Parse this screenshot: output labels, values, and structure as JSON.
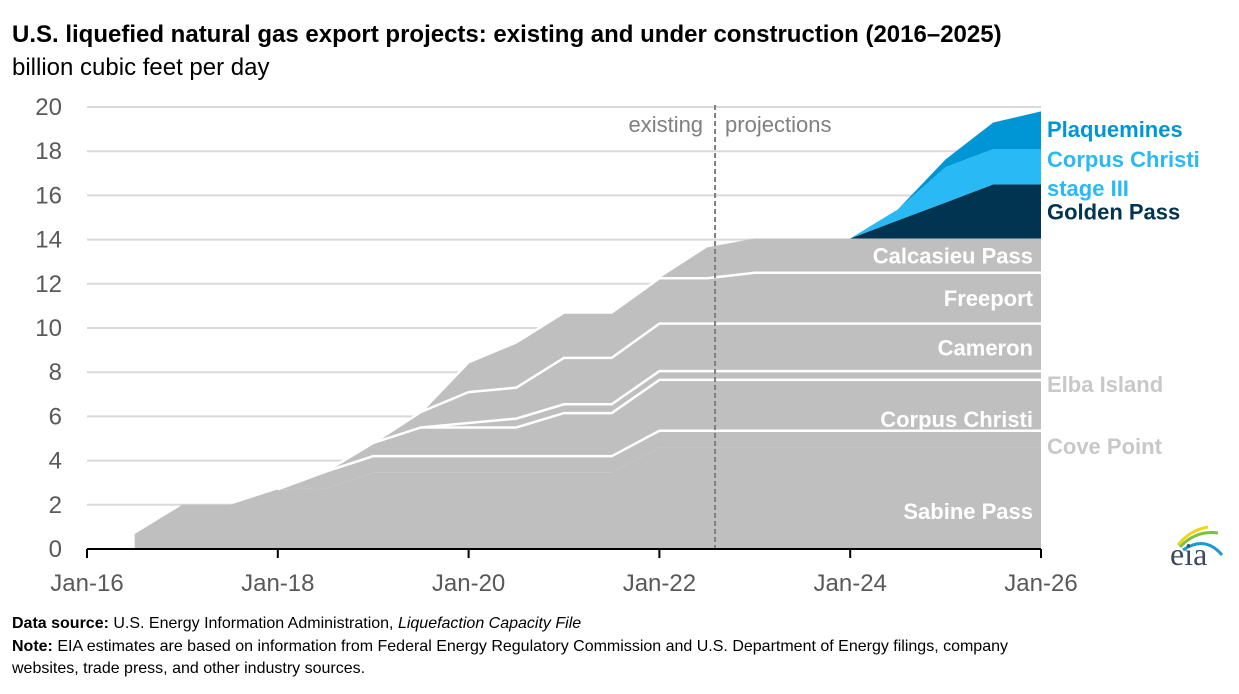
{
  "chart_data": {
    "type": "area",
    "stacked": true,
    "title": "U.S. liquefied natural gas export projects: existing and under construction (2016–2025)",
    "subtitle": "billion cubic feet per day",
    "xlabel": "",
    "ylabel": "",
    "ylim": [
      0,
      20
    ],
    "yticks": [
      "0",
      "2",
      "4",
      "6",
      "8",
      "10",
      "12",
      "14",
      "16",
      "18",
      "20"
    ],
    "xlim": [
      "2016-01",
      "2026-01"
    ],
    "xticks": [
      "Jan-16",
      "Jan-18",
      "Jan-20",
      "Jan-22",
      "Jan-24",
      "Jan-26"
    ],
    "grid": true,
    "legend": "inline-right",
    "divider": {
      "x": "2022-08",
      "left_label": "existing",
      "right_label": "projections"
    },
    "x": [
      "2016-07",
      "2017-01",
      "2017-07",
      "2018-01",
      "2018-07",
      "2019-01",
      "2019-07",
      "2020-01",
      "2020-07",
      "2021-01",
      "2021-07",
      "2022-01",
      "2022-07",
      "2023-01",
      "2024-01",
      "2024-07",
      "2025-01",
      "2025-07",
      "2026-01"
    ],
    "series": [
      {
        "name": "Sabine Pass",
        "color": "#bfbfbf",
        "label_color": "#ffffff",
        "values": [
          0.68,
          2.0,
          2.0,
          2.7,
          2.75,
          3.45,
          3.45,
          3.45,
          3.45,
          3.45,
          3.45,
          4.6,
          4.6,
          4.6,
          4.6,
          4.6,
          4.6,
          4.6,
          4.6
        ]
      },
      {
        "name": "Cove Point",
        "color": "#bfbfbf",
        "label_color": "#c8c8c8",
        "values": [
          0,
          0,
          0,
          0,
          0.75,
          0.75,
          0.75,
          0.75,
          0.75,
          0.75,
          0.75,
          0.75,
          0.75,
          0.75,
          0.75,
          0.75,
          0.75,
          0.75,
          0.75
        ]
      },
      {
        "name": "Corpus Christi",
        "color": "#bfbfbf",
        "label_color": "#ffffff",
        "values": [
          0,
          0,
          0,
          0,
          0,
          0.6,
          1.3,
          1.3,
          1.3,
          1.95,
          1.95,
          2.3,
          2.3,
          2.3,
          2.3,
          2.3,
          2.3,
          2.3,
          2.3
        ]
      },
      {
        "name": "Elba Island",
        "color": "#bfbfbf",
        "label_color": "#c8c8c8",
        "values": [
          0,
          0,
          0,
          0,
          0,
          0,
          0,
          0.2,
          0.4,
          0.4,
          0.4,
          0.4,
          0.4,
          0.4,
          0.4,
          0.4,
          0.4,
          0.4,
          0.4
        ]
      },
      {
        "name": "Cameron",
        "color": "#bfbfbf",
        "label_color": "#ffffff",
        "values": [
          0,
          0,
          0,
          0,
          0,
          0,
          0.7,
          1.4,
          1.4,
          2.1,
          2.1,
          2.15,
          2.15,
          2.15,
          2.15,
          2.15,
          2.15,
          2.15,
          2.15
        ]
      },
      {
        "name": "Freeport",
        "color": "#bfbfbf",
        "label_color": "#ffffff",
        "values": [
          0,
          0,
          0,
          0,
          0,
          0,
          0,
          1.35,
          2.05,
          2.05,
          2.05,
          2.05,
          2.05,
          2.3,
          2.3,
          2.3,
          2.3,
          2.3,
          2.3
        ]
      },
      {
        "name": "Calcasieu Pass",
        "color": "#bfbfbf",
        "label_color": "#ffffff",
        "values": [
          0,
          0,
          0,
          0,
          0,
          0,
          0,
          0,
          0,
          0,
          0,
          0,
          1.4,
          1.55,
          1.55,
          1.55,
          1.55,
          1.55,
          1.55
        ]
      },
      {
        "name": "Golden Pass",
        "color": "#003450",
        "label_color": "#003450",
        "values": [
          0,
          0,
          0,
          0,
          0,
          0,
          0,
          0,
          0,
          0,
          0,
          0,
          0,
          0,
          0,
          0.82,
          1.63,
          2.45,
          2.45
        ]
      },
      {
        "name": "Corpus Christi stage III",
        "label_lines": [
          "Corpus Christi",
          "stage III"
        ],
        "color": "#29b9f5",
        "label_color": "#29b9f5",
        "values": [
          0,
          0,
          0,
          0,
          0,
          0,
          0,
          0,
          0,
          0,
          0,
          0,
          0,
          0,
          0,
          0.5,
          1.6,
          1.6,
          1.6
        ]
      },
      {
        "name": "Plaquemines",
        "color": "#0096d6",
        "label_color": "#0096d6",
        "values": [
          0,
          0,
          0,
          0,
          0,
          0,
          0,
          0,
          0,
          0,
          0,
          0,
          0,
          0,
          0,
          0,
          0.35,
          1.2,
          1.7
        ]
      }
    ]
  },
  "footer": {
    "source_label": "Data source:",
    "source_text": " U.S. Energy Information Administration, ",
    "source_file": "Liquefaction Capacity File",
    "note_label": "Note:",
    "note_text_1": " EIA estimates are based on information from Federal Energy Regulatory Commission and U.S. Department of Energy filings, company",
    "note_text_2": "websites, trade press, and other industry sources."
  },
  "logo": {
    "text": "eia"
  }
}
